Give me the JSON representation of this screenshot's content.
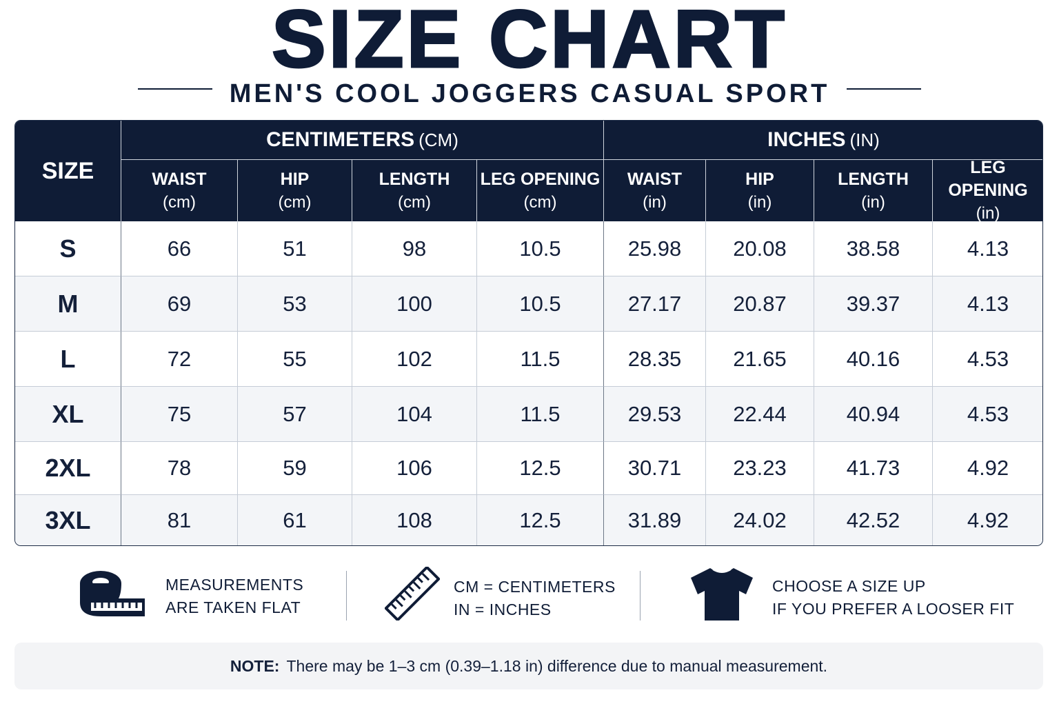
{
  "header": {
    "title": "SIZE CHART",
    "subtitle": "MEN'S COOL JOGGERS CASUAL SPORT"
  },
  "table": {
    "size_header": "SIZE",
    "groups": [
      {
        "label": "CENTIMETERS",
        "unit": "(CM)"
      },
      {
        "label": "INCHES",
        "unit": "(IN)"
      }
    ],
    "columns": [
      {
        "label": "WAIST",
        "unit": "(cm)"
      },
      {
        "label": "HIP",
        "unit": "(cm)"
      },
      {
        "label": "LENGTH",
        "unit": "(cm)"
      },
      {
        "label": "LEG OPENING",
        "unit": "(cm)"
      },
      {
        "label": "WAIST",
        "unit": "(in)"
      },
      {
        "label": "HIP",
        "unit": "(in)"
      },
      {
        "label": "LENGTH",
        "unit": "(in)"
      },
      {
        "label": "LEG OPENING",
        "unit": "(in)"
      }
    ],
    "rows": [
      [
        "S",
        66,
        51,
        98,
        10.5,
        25.98,
        20.08,
        38.58,
        4.13
      ],
      [
        "M",
        69,
        53,
        100,
        10.5,
        27.17,
        20.87,
        39.37,
        4.13
      ],
      [
        "L",
        72,
        55,
        102,
        11.5,
        28.35,
        21.65,
        40.16,
        4.53
      ],
      [
        "XL",
        75,
        57,
        104,
        11.5,
        29.53,
        22.44,
        40.94,
        4.53
      ],
      [
        "2XL",
        78,
        59,
        106,
        12.5,
        30.71,
        23.23,
        41.73,
        4.92
      ],
      [
        "3XL",
        81,
        61,
        108,
        12.5,
        31.89,
        24.02,
        42.52,
        4.92
      ]
    ]
  },
  "info": [
    {
      "lines": [
        "MEASUREMENTS",
        "ARE TAKEN FLAT"
      ]
    },
    {
      "lines": [
        "CM = CENTIMETERS",
        "IN = INCHES"
      ]
    },
    {
      "lines": [
        "CHOOSE A SIZE UP",
        "IF YOU PREFER A LOOSER FIT"
      ]
    }
  ],
  "note": {
    "label": "NOTE:",
    "text": "There may be 1–3 cm (0.39–1.18 in) difference due to manual measurement."
  }
}
